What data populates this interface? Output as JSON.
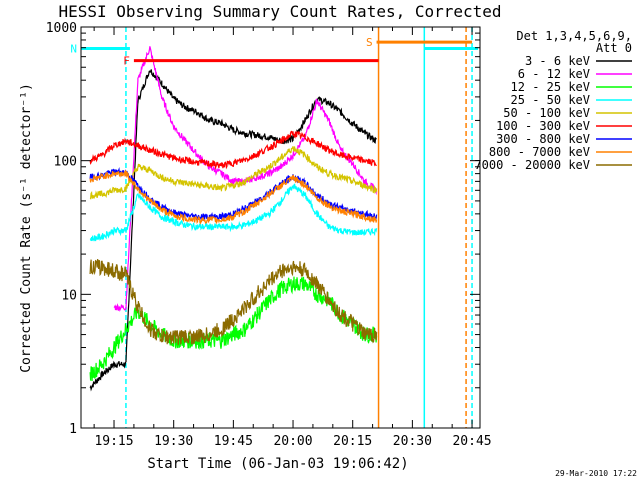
{
  "chart_data": {
    "type": "line",
    "title": "HESSI Observing Summary Count Rates, Corrected",
    "xlabel": "Start Time (06-Jan-03 19:06:42)",
    "ylabel": "Corrected Count Rate (s⁻¹ detector⁻¹)",
    "y_scale": "log",
    "xlim": [
      "19:06:42",
      "20:47:00"
    ],
    "ylim": [
      1,
      1000
    ],
    "x_ticks": [
      "19:15",
      "19:30",
      "19:45",
      "20:00",
      "20:15",
      "20:30",
      "20:45"
    ],
    "y_ticks": [
      "1",
      "10",
      "100",
      "1000"
    ],
    "detectors_label": "Det 1,3,4,5,6,9,",
    "attenuator_label": "Att 0",
    "timestamp": "29-Mar-2010 17:22",
    "flags": [
      {
        "label": "F",
        "color": "#ff0000",
        "start": "19:20:00",
        "end": "20:21:30",
        "level": 560
      },
      {
        "label": "N",
        "color": "#00ffff",
        "start": "19:06:42",
        "end": "19:19:00",
        "level": 690
      },
      {
        "label": "S",
        "color": "#ff8000",
        "start": "20:21:00",
        "end": "20:45:00",
        "level": 770
      },
      {
        "label": "",
        "color": "#00ffff",
        "start": "20:33:00",
        "end": "20:46:30",
        "level": 690
      }
    ],
    "markers": [
      {
        "color": "#00ffff",
        "time": "19:18:00",
        "style": "dashed"
      },
      {
        "color": "#ff8000",
        "time": "20:21:30",
        "style": "solid"
      },
      {
        "color": "#00ffff",
        "time": "20:33:00",
        "style": "solid"
      },
      {
        "color": "#ff8000",
        "time": "20:43:30",
        "style": "dashed"
      },
      {
        "color": "#00ffff",
        "time": "20:45:00",
        "style": "dashed"
      }
    ],
    "x": [
      "19:09",
      "19:12",
      "19:15",
      "19:18",
      "19:21",
      "19:24",
      "19:27",
      "19:30",
      "19:33",
      "19:36",
      "19:39",
      "19:42",
      "19:45",
      "19:48",
      "19:51",
      "19:54",
      "19:57",
      "20:00",
      "20:03",
      "20:06",
      "20:09",
      "20:12",
      "20:15",
      "20:18",
      "20:21"
    ],
    "series": [
      {
        "name": "3 - 6 keV",
        "color": "#000000",
        "values": [
          2,
          2.5,
          3,
          3,
          280,
          480,
          380,
          290,
          250,
          230,
          200,
          190,
          170,
          160,
          155,
          150,
          140,
          145,
          200,
          290,
          270,
          230,
          190,
          160,
          140
        ]
      },
      {
        "name": "6 - 12 keV",
        "color": "#ff00ff",
        "values": [
          null,
          null,
          8,
          8,
          400,
          700,
          300,
          180,
          140,
          110,
          90,
          80,
          70,
          70,
          75,
          80,
          90,
          110,
          150,
          280,
          200,
          120,
          95,
          70,
          60
        ]
      },
      {
        "name": "12 - 25 keV",
        "color": "#00ff00",
        "values": [
          2.5,
          3,
          4,
          5.5,
          7.5,
          6,
          5,
          4.5,
          4.5,
          4.5,
          4.5,
          4.5,
          5,
          5.5,
          7,
          9,
          11,
          12,
          12,
          10,
          9,
          7,
          6,
          5,
          5
        ]
      },
      {
        "name": "25 - 50 keV",
        "color": "#00ffff",
        "values": [
          26,
          27,
          30,
          30,
          55,
          45,
          38,
          35,
          33,
          32,
          32,
          32,
          32,
          33,
          36,
          40,
          50,
          65,
          55,
          40,
          32,
          30,
          29,
          29,
          30
        ]
      },
      {
        "name": "50 - 100 keV",
        "color": "#d4c400",
        "values": [
          55,
          56,
          60,
          62,
          90,
          85,
          75,
          70,
          68,
          66,
          64,
          62,
          65,
          70,
          80,
          90,
          105,
          125,
          110,
          90,
          80,
          75,
          70,
          65,
          60
        ]
      },
      {
        "name": "100 - 300 keV",
        "color": "#ff0000",
        "values": [
          100,
          110,
          130,
          140,
          130,
          120,
          112,
          105,
          100,
          97,
          95,
          92,
          96,
          102,
          112,
          125,
          140,
          160,
          150,
          135,
          120,
          110,
          105,
          100,
          95
        ]
      },
      {
        "name": "300 - 800 keV",
        "color": "#0000ff",
        "values": [
          75,
          78,
          82,
          82,
          65,
          52,
          45,
          41,
          39,
          38,
          38,
          38,
          40,
          44,
          50,
          58,
          67,
          76,
          68,
          55,
          48,
          44,
          42,
          40,
          38
        ]
      },
      {
        "name": "800 - 7000 keV",
        "color": "#ff8000",
        "values": [
          72,
          76,
          80,
          80,
          62,
          50,
          43,
          39,
          37,
          36,
          36,
          36,
          38,
          42,
          48,
          56,
          65,
          74,
          66,
          53,
          46,
          42,
          40,
          38,
          36
        ]
      },
      {
        "name": "7000 - 20000 keV",
        "color": "#8b6b00",
        "values": [
          16,
          16,
          15,
          14,
          8,
          5.5,
          4.8,
          4.8,
          4.8,
          4.8,
          5,
          5.5,
          6.5,
          8,
          10,
          12.5,
          15,
          16,
          15,
          12,
          9,
          7,
          6,
          5,
          5
        ]
      }
    ]
  }
}
